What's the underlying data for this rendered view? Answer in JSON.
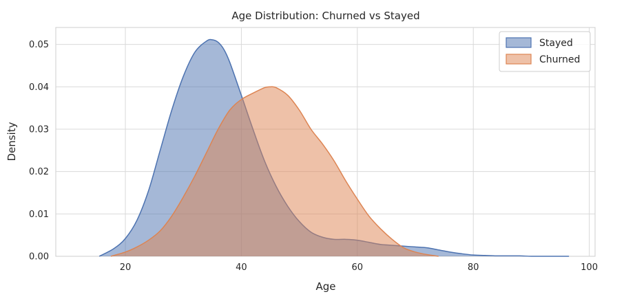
{
  "chart_data": {
    "type": "area",
    "title": "Age Distribution: Churned vs Stayed",
    "xlabel": "Age",
    "ylabel": "Density",
    "xlim": [
      8,
      101
    ],
    "ylim": [
      0,
      0.054
    ],
    "xticks": [
      20,
      40,
      60,
      80,
      100
    ],
    "yticks": [
      0.0,
      0.01,
      0.02,
      0.03,
      0.04,
      0.05
    ],
    "ytick_labels": [
      "0.00",
      "0.01",
      "0.02",
      "0.03",
      "0.04",
      "0.05"
    ],
    "grid": true,
    "legend_position": "top-right",
    "series": [
      {
        "name": "Stayed",
        "color": "#4c72b0",
        "x": [
          15.5,
          18,
          20,
          22,
          24,
          26,
          28,
          30,
          32,
          34,
          35,
          36,
          37,
          38,
          40,
          42,
          44,
          46,
          48,
          50,
          52,
          54,
          56,
          58,
          60,
          62,
          64,
          66,
          68,
          70,
          72,
          74,
          76,
          78,
          80,
          82,
          84,
          86,
          88,
          90,
          92,
          94,
          96.5
        ],
        "y": [
          0.0,
          0.0018,
          0.0042,
          0.0085,
          0.0155,
          0.025,
          0.0345,
          0.0425,
          0.0482,
          0.0508,
          0.0511,
          0.0505,
          0.0488,
          0.0458,
          0.038,
          0.03,
          0.0225,
          0.0165,
          0.0118,
          0.0082,
          0.0057,
          0.0045,
          0.004,
          0.004,
          0.0038,
          0.0033,
          0.0028,
          0.0026,
          0.0024,
          0.0022,
          0.002,
          0.0015,
          0.001,
          0.0006,
          0.0003,
          0.0002,
          0.0001,
          0.0001,
          0.0001,
          0.0,
          0.0,
          0.0,
          0.0
        ]
      },
      {
        "name": "Churned",
        "color": "#dd8452",
        "x": [
          17.5,
          20,
          22,
          24,
          26,
          28,
          30,
          32,
          34,
          36,
          38,
          40,
          42,
          44,
          45,
          46,
          48,
          50,
          52,
          54,
          56,
          58,
          60,
          62,
          64,
          66,
          68,
          70,
          72,
          74
        ],
        "y": [
          0.0,
          0.001,
          0.0022,
          0.0038,
          0.006,
          0.0095,
          0.014,
          0.019,
          0.0245,
          0.03,
          0.0345,
          0.037,
          0.0385,
          0.0398,
          0.04,
          0.0398,
          0.038,
          0.0345,
          0.03,
          0.0265,
          0.0225,
          0.0178,
          0.0135,
          0.0095,
          0.0065,
          0.004,
          0.002,
          0.001,
          0.0004,
          0.0
        ]
      }
    ]
  }
}
